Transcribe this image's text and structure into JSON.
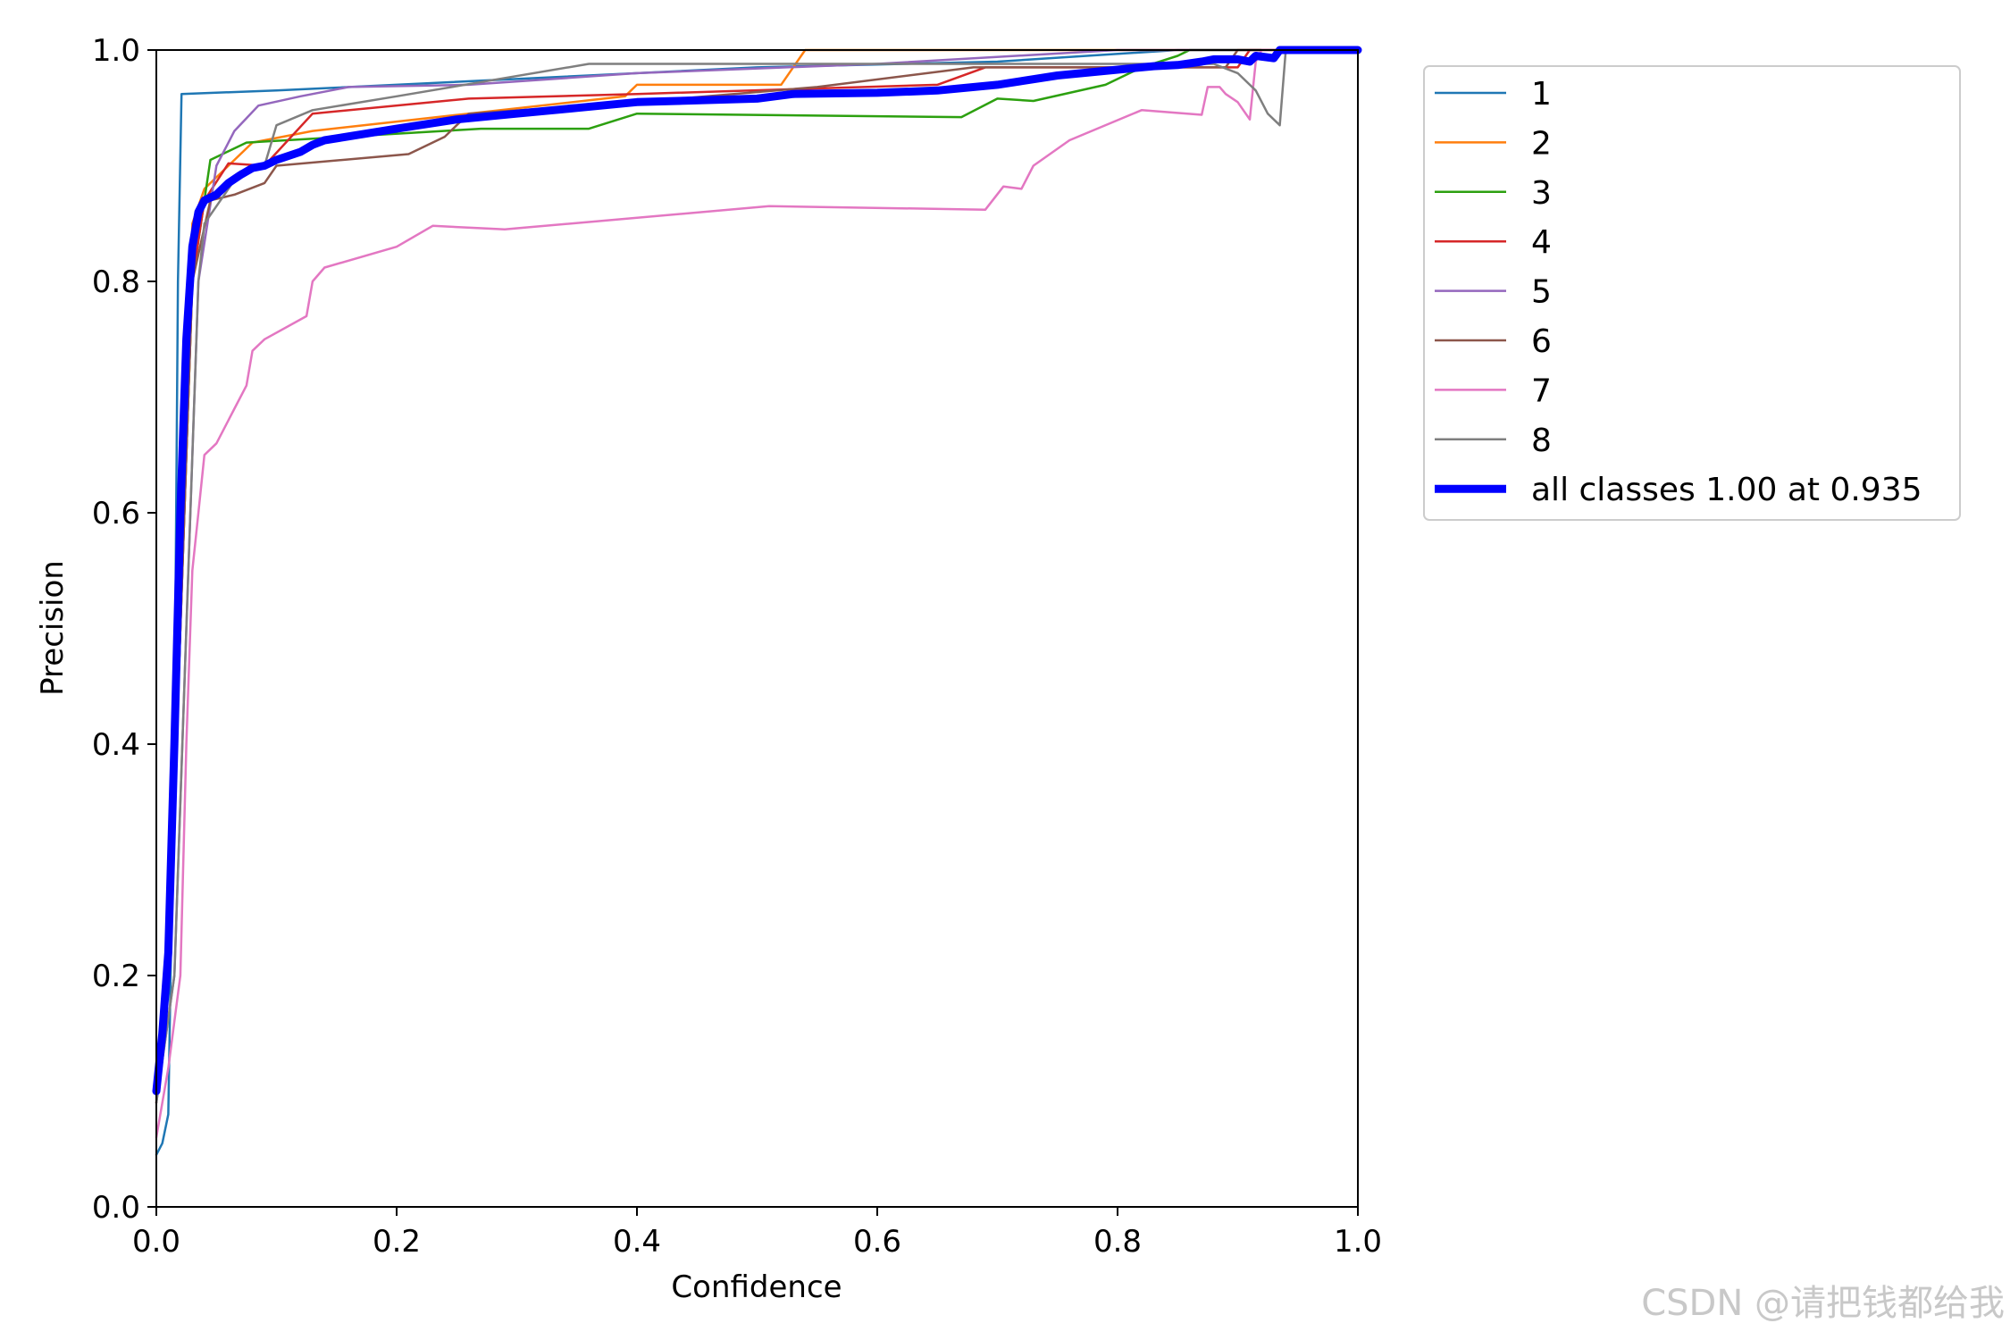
{
  "chart_data": {
    "type": "line",
    "title": "",
    "xlabel": "Confidence",
    "ylabel": "Precision",
    "xlim": [
      0,
      1
    ],
    "ylim": [
      0,
      1
    ],
    "xticks": [
      "0.0",
      "0.2",
      "0.4",
      "0.6",
      "0.8",
      "1.0"
    ],
    "yticks": [
      "0.0",
      "0.2",
      "0.4",
      "0.6",
      "0.8",
      "1.0"
    ],
    "grid": false,
    "legend_position": "outside-right-top",
    "series": [
      {
        "name": "1",
        "color": "#1f77b4",
        "x": [
          0.0,
          0.005,
          0.01,
          0.015,
          0.018,
          0.021,
          0.1,
          0.3,
          0.5,
          0.7,
          0.85,
          1.0
        ],
        "y": [
          0.045,
          0.055,
          0.08,
          0.4,
          0.8,
          0.962,
          0.965,
          0.975,
          0.985,
          0.99,
          1.0,
          1.0
        ]
      },
      {
        "name": "2",
        "color": "#ff7f0e",
        "x": [
          0.0,
          0.01,
          0.02,
          0.03,
          0.04,
          0.06,
          0.08,
          0.13,
          0.26,
          0.39,
          0.4,
          0.52,
          0.54,
          1.0
        ],
        "y": [
          0.09,
          0.2,
          0.5,
          0.85,
          0.88,
          0.9,
          0.92,
          0.93,
          0.945,
          0.96,
          0.97,
          0.97,
          1.0,
          1.0
        ]
      },
      {
        "name": "3",
        "color": "#2ca00f",
        "x": [
          0.0,
          0.01,
          0.02,
          0.03,
          0.045,
          0.075,
          0.27,
          0.36,
          0.4,
          0.67,
          0.7,
          0.73,
          0.79,
          0.82,
          0.85,
          0.86,
          1.0
        ],
        "y": [
          0.1,
          0.2,
          0.5,
          0.8,
          0.905,
          0.92,
          0.932,
          0.932,
          0.945,
          0.942,
          0.958,
          0.956,
          0.97,
          0.985,
          0.995,
          1.0,
          1.0
        ]
      },
      {
        "name": "4",
        "color": "#d62728",
        "x": [
          0.0,
          0.01,
          0.02,
          0.03,
          0.04,
          0.06,
          0.09,
          0.13,
          0.26,
          0.4,
          0.65,
          0.69,
          0.8,
          0.9,
          0.91,
          1.0
        ],
        "y": [
          0.1,
          0.2,
          0.5,
          0.8,
          0.87,
          0.902,
          0.9,
          0.945,
          0.958,
          0.962,
          0.97,
          0.985,
          0.985,
          0.985,
          1.0,
          1.0
        ]
      },
      {
        "name": "5",
        "color": "#9467bd",
        "x": [
          0.0,
          0.015,
          0.025,
          0.035,
          0.05,
          0.065,
          0.085,
          0.12,
          0.16,
          0.26,
          0.4,
          0.6,
          0.8,
          0.88,
          1.0
        ],
        "y": [
          0.09,
          0.2,
          0.5,
          0.8,
          0.9,
          0.93,
          0.952,
          0.96,
          0.968,
          0.97,
          0.98,
          0.988,
          1.0,
          1.0,
          1.0
        ]
      },
      {
        "name": "6",
        "color": "#8c564b",
        "x": [
          0.0,
          0.01,
          0.02,
          0.03,
          0.045,
          0.065,
          0.09,
          0.1,
          0.21,
          0.24,
          0.26,
          0.4,
          0.55,
          0.68,
          0.85,
          0.89,
          0.9,
          1.0
        ],
        "y": [
          0.1,
          0.2,
          0.5,
          0.8,
          0.87,
          0.875,
          0.885,
          0.9,
          0.91,
          0.925,
          0.945,
          0.955,
          0.968,
          0.985,
          0.985,
          0.985,
          1.0,
          1.0
        ]
      },
      {
        "name": "7",
        "color": "#e377c2",
        "x": [
          0.0,
          0.01,
          0.02,
          0.025,
          0.03,
          0.035,
          0.04,
          0.05,
          0.065,
          0.075,
          0.08,
          0.09,
          0.125,
          0.13,
          0.14,
          0.2,
          0.23,
          0.29,
          0.51,
          0.69,
          0.705,
          0.72,
          0.73,
          0.76,
          0.82,
          0.87,
          0.875,
          0.885,
          0.89,
          0.9,
          0.91,
          0.915,
          0.92,
          1.0
        ],
        "y": [
          0.06,
          0.12,
          0.2,
          0.4,
          0.55,
          0.6,
          0.65,
          0.66,
          0.69,
          0.71,
          0.74,
          0.75,
          0.77,
          0.8,
          0.812,
          0.83,
          0.848,
          0.845,
          0.865,
          0.862,
          0.882,
          0.88,
          0.9,
          0.922,
          0.948,
          0.944,
          0.968,
          0.968,
          0.962,
          0.955,
          0.94,
          0.99,
          1.0,
          1.0
        ]
      },
      {
        "name": "8",
        "color": "#7f7f7f",
        "x": [
          0.0,
          0.015,
          0.025,
          0.035,
          0.04,
          0.07,
          0.09,
          0.1,
          0.13,
          0.2,
          0.36,
          0.5,
          0.7,
          0.88,
          0.9,
          0.915,
          0.925,
          0.935,
          0.94,
          1.0
        ],
        "y": [
          0.09,
          0.2,
          0.5,
          0.8,
          0.85,
          0.895,
          0.9,
          0.935,
          0.948,
          0.96,
          0.988,
          0.988,
          0.988,
          0.988,
          0.98,
          0.965,
          0.945,
          0.935,
          1.0,
          1.0
        ]
      },
      {
        "name": "all classes 1.00 at 0.935",
        "color": "#0000ff",
        "thick": true,
        "x": [
          0.0,
          0.005,
          0.01,
          0.015,
          0.02,
          0.025,
          0.03,
          0.035,
          0.04,
          0.05,
          0.06,
          0.07,
          0.08,
          0.09,
          0.1,
          0.12,
          0.13,
          0.14,
          0.2,
          0.25,
          0.3,
          0.35,
          0.4,
          0.5,
          0.53,
          0.6,
          0.65,
          0.7,
          0.75,
          0.8,
          0.83,
          0.85,
          0.87,
          0.88,
          0.9,
          0.91,
          0.915,
          0.93,
          0.935,
          1.0
        ],
        "y": [
          0.1,
          0.15,
          0.22,
          0.4,
          0.6,
          0.75,
          0.83,
          0.86,
          0.87,
          0.875,
          0.885,
          0.892,
          0.898,
          0.9,
          0.905,
          0.912,
          0.918,
          0.922,
          0.932,
          0.94,
          0.945,
          0.95,
          0.955,
          0.958,
          0.962,
          0.963,
          0.965,
          0.97,
          0.978,
          0.983,
          0.986,
          0.987,
          0.99,
          0.992,
          0.992,
          0.99,
          0.995,
          0.993,
          1.0,
          1.0
        ]
      }
    ]
  },
  "watermark": "CSDN @请把钱都给我"
}
